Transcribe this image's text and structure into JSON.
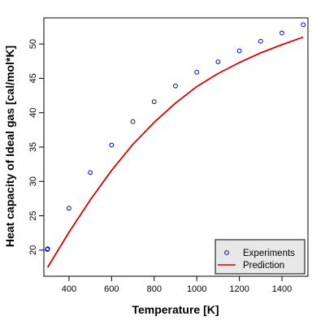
{
  "chart_data": {
    "type": "scatter",
    "title": "",
    "xlabel": "Temperature [K]",
    "ylabel": "Heat capacity of Ideal gas [cal/mol*K]",
    "xlim": [
      282,
      1522
    ],
    "ylim": [
      16.2,
      53.8
    ],
    "xticks": [
      400,
      600,
      800,
      1000,
      1200,
      1400
    ],
    "yticks": [
      20,
      25,
      30,
      35,
      40,
      45,
      50
    ],
    "grid": false,
    "legend_position": "bottom-right",
    "series": [
      {
        "name": "Experiments",
        "kind": "points",
        "color": "#0000cc",
        "marker": "open-circle",
        "x": [
          298,
          300,
          400,
          500,
          600,
          700,
          800,
          900,
          1000,
          1100,
          1200,
          1300,
          1400,
          1500
        ],
        "y": [
          20.1,
          20.2,
          26.1,
          31.3,
          35.3,
          38.7,
          41.6,
          43.9,
          45.9,
          47.4,
          49.0,
          50.4,
          51.6,
          52.8
        ]
      },
      {
        "name": "Prediction",
        "kind": "line",
        "color": "#dd0000",
        "x": [
          300,
          400,
          500,
          600,
          700,
          800,
          900,
          1000,
          1100,
          1200,
          1300,
          1400,
          1500
        ],
        "y": [
          17.5,
          22.6,
          27.3,
          31.6,
          35.4,
          38.6,
          41.4,
          43.8,
          45.7,
          47.3,
          48.7,
          49.9,
          51.0
        ]
      }
    ]
  }
}
